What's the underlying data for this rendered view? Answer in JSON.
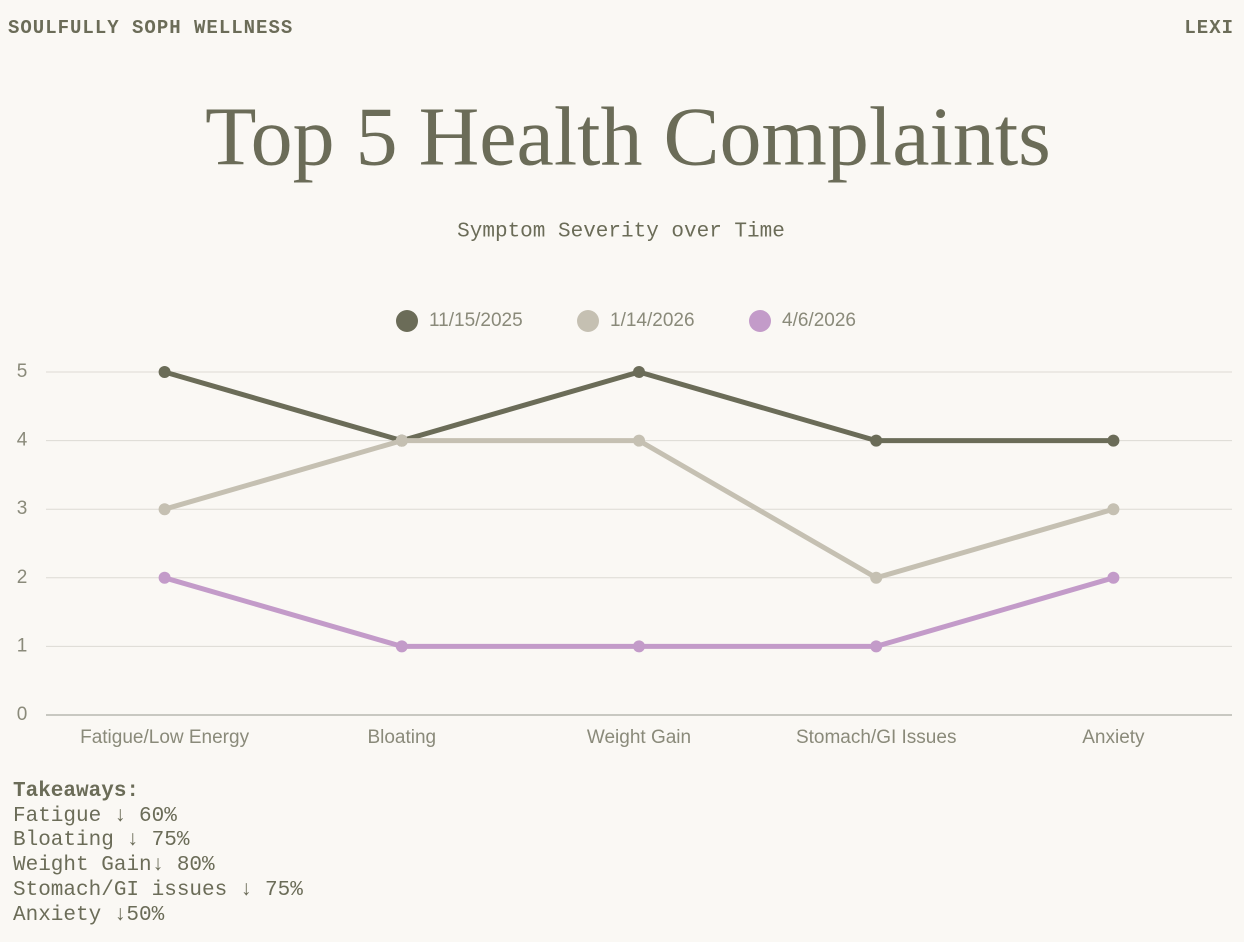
{
  "header": {
    "brand": "SOULFULLY SOPH WELLNESS",
    "user": "LEXI"
  },
  "chart_data": {
    "type": "line",
    "title": "Top 5 Health Complaints",
    "subtitle": "Symptom Severity over Time",
    "categories": [
      "Fatigue/Low Energy",
      "Bloating",
      "Weight Gain",
      "Stomach/GI Issues",
      "Anxiety"
    ],
    "series": [
      {
        "name": "11/15/2025",
        "color": "#6b6c58",
        "values": [
          5,
          4,
          5,
          4,
          4
        ]
      },
      {
        "name": "1/14/2026",
        "color": "#c5c0b2",
        "values": [
          3,
          4,
          4,
          2,
          3
        ]
      },
      {
        "name": "4/6/2026",
        "color": "#c39bc9",
        "values": [
          2,
          1,
          1,
          1,
          2
        ]
      }
    ],
    "ylim": [
      0,
      5
    ],
    "yticks": [
      0,
      1,
      2,
      3,
      4,
      5
    ],
    "grid": true,
    "legend": "top"
  },
  "takeaways": {
    "title": "Takeaways:",
    "items": [
      "Fatigue ↓ 60%",
      "Bloating ↓ 75%",
      "Weight Gain↓ 80%",
      "Stomach/GI issues ↓ 75%",
      "Anxiety ↓50%"
    ]
  }
}
